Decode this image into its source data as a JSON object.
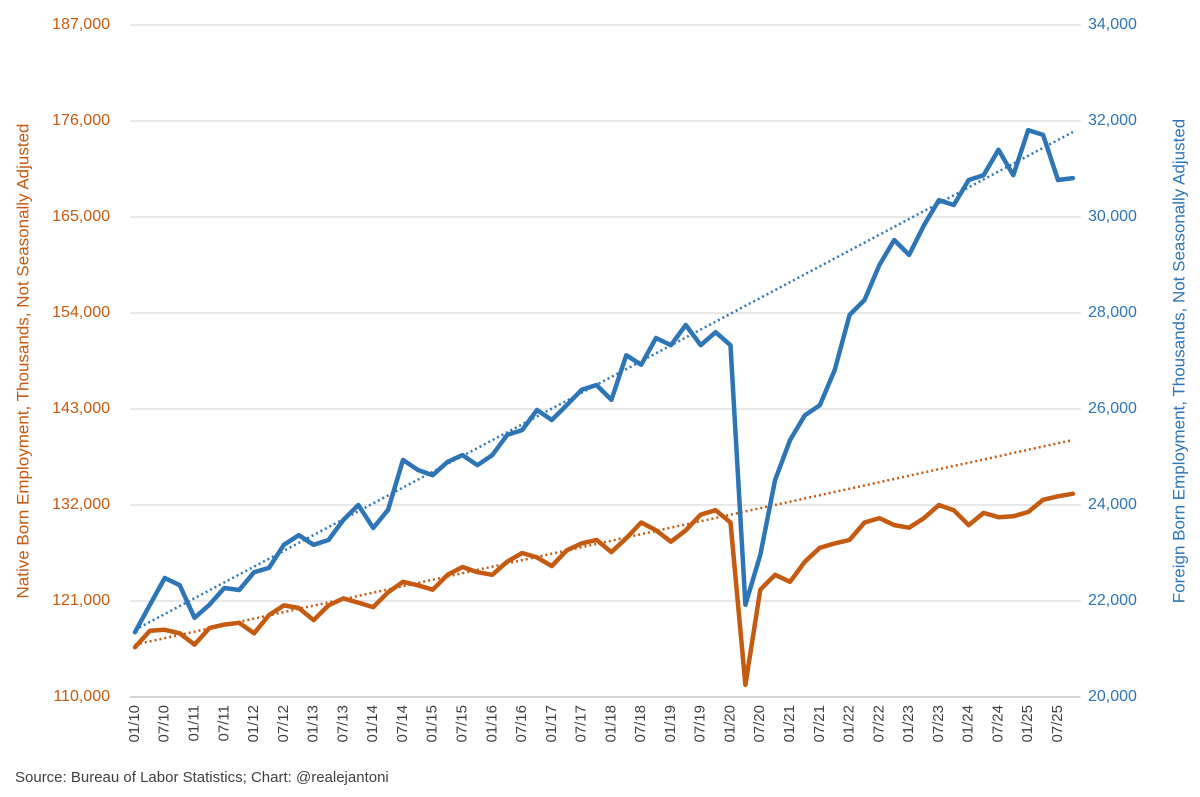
{
  "chart_data": {
    "type": "line",
    "source": "Source: Bureau of Labor Statistics; Chart: @realejantoni",
    "ylabel": "Native Born Employment, Thousands, Not Seasonally Adjusted",
    "y2label": "Foreign Born Employment, Thousands, Not Seasonally Adjusted",
    "categories": [
      "01/10",
      null,
      "07/10",
      null,
      "01/11",
      null,
      "07/11",
      null,
      "01/12",
      null,
      "07/12",
      null,
      "01/13",
      null,
      "07/13",
      null,
      "01/14",
      null,
      "07/14",
      null,
      "01/15",
      null,
      "07/15",
      null,
      "01/16",
      null,
      "07/16",
      null,
      "01/17",
      null,
      "07/17",
      null,
      "01/18",
      null,
      "07/18",
      null,
      "01/19",
      null,
      "07/19",
      null,
      "01/20",
      null,
      "07/20",
      null,
      "01/21",
      null,
      "07/21",
      null,
      "01/22",
      null,
      "07/22",
      null,
      "01/23",
      null,
      "07/23",
      null,
      "01/24",
      null,
      "07/24",
      null,
      "01/25",
      null,
      "07/25",
      null
    ],
    "ylim": [
      110000,
      187000
    ],
    "yticks": [
      {
        "value": 110000,
        "label": "110,000"
      },
      {
        "value": 121000,
        "label": "121,000"
      },
      {
        "value": 132000,
        "label": "132,000"
      },
      {
        "value": 143000,
        "label": "143,000"
      },
      {
        "value": 154000,
        "label": "154,000"
      },
      {
        "value": 165000,
        "label": "165,000"
      },
      {
        "value": 176000,
        "label": "176,000"
      },
      {
        "value": 187000,
        "label": "187,000"
      }
    ],
    "y2lim": [
      20000,
      34000
    ],
    "y2ticks": [
      {
        "value": 20000,
        "label": "20,000"
      },
      {
        "value": 22000,
        "label": "22,000"
      },
      {
        "value": 24000,
        "label": "24,000"
      },
      {
        "value": 26000,
        "label": "26,000"
      },
      {
        "value": 28000,
        "label": "28,000"
      },
      {
        "value": 30000,
        "label": "30,000"
      },
      {
        "value": 32000,
        "label": "32,000"
      },
      {
        "value": 34000,
        "label": "34,000"
      }
    ],
    "grid": true,
    "series": [
      {
        "color": "#c55a11",
        "axis": "y",
        "trend": [
          116000,
          139450
        ],
        "values": [
          115700,
          117600,
          117700,
          117300,
          116000,
          117900,
          118300,
          118500,
          117300,
          119400,
          120500,
          120200,
          118800,
          120500,
          121300,
          120800,
          120300,
          122000,
          123200,
          122800,
          122300,
          124000,
          124900,
          124300,
          124000,
          125500,
          126500,
          126000,
          125000,
          126800,
          127600,
          128000,
          126600,
          128200,
          130000,
          129100,
          127800,
          129100,
          130900,
          131400,
          130000,
          111400,
          122300,
          124000,
          123200,
          125500,
          127100,
          127600,
          128000,
          130000,
          130500,
          129700,
          129400,
          130500,
          132000,
          131400,
          129700,
          131100,
          130600,
          130700,
          131200,
          132600,
          133000,
          133300
        ]
      },
      {
        "color": "#2e75b6",
        "axis": "y2",
        "trend": [
          21400,
          31770
        ],
        "values": [
          21350,
          21920,
          22480,
          22330,
          21650,
          21920,
          22270,
          22230,
          22600,
          22690,
          23170,
          23370,
          23170,
          23270,
          23690,
          24000,
          23520,
          23900,
          24940,
          24730,
          24620,
          24900,
          25040,
          24830,
          25040,
          25460,
          25560,
          25980,
          25770,
          26080,
          26400,
          26500,
          26190,
          27120,
          26920,
          27480,
          27330,
          27750,
          27330,
          27600,
          27330,
          21920,
          22960,
          24520,
          25350,
          25870,
          26080,
          26810,
          27960,
          28270,
          29000,
          29520,
          29210,
          29830,
          30350,
          30250,
          30770,
          30870,
          31400,
          30870,
          31810,
          31710,
          30770,
          30810
        ]
      }
    ]
  }
}
